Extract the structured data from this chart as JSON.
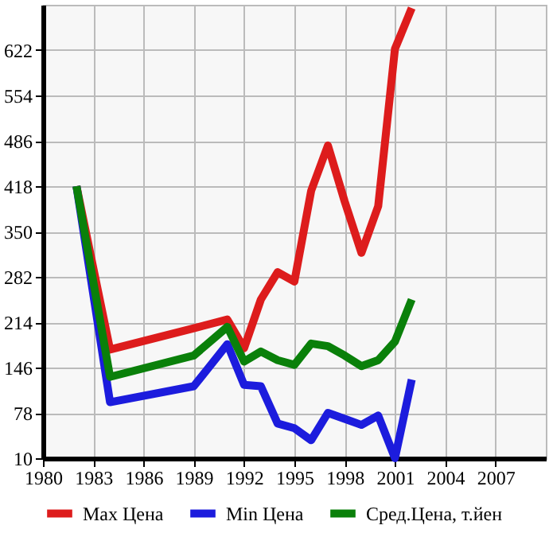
{
  "chart_data": {
    "type": "line",
    "x": [
      1982,
      1984,
      1989,
      1991,
      1992,
      1993,
      1994,
      1995,
      1996,
      1997,
      1998,
      1999,
      2000,
      2001,
      2002
    ],
    "series": [
      {
        "name": "Max Цена",
        "color": "#dd1c1c",
        "values": [
          418,
          173,
          205,
          218,
          175,
          248,
          289,
          275,
          411,
          479,
          395,
          318,
          388,
          624,
          685
        ]
      },
      {
        "name": "Min Цена",
        "color": "#1c1cdd",
        "values": [
          418,
          94,
          118,
          181,
          120,
          118,
          62,
          55,
          37,
          78,
          69,
          60,
          74,
          10,
          128
        ]
      },
      {
        "name": "Сред.Цена, т.йен",
        "color": "#0a800a",
        "values": [
          418,
          132,
          164,
          207,
          155,
          170,
          157,
          150,
          182,
          178,
          164,
          148,
          157,
          185,
          248
        ]
      }
    ],
    "xlim": [
      1980,
      2010
    ],
    "xticks": [
      1980,
      1983,
      1986,
      1989,
      1992,
      1995,
      1998,
      2001,
      2004,
      2007
    ],
    "ylim": [
      10,
      690
    ],
    "yticks": [
      10,
      78,
      146,
      214,
      282,
      350,
      418,
      486,
      554,
      622
    ],
    "grid": true,
    "legend": "bottom",
    "marker": "none",
    "line_style": "solid"
  }
}
